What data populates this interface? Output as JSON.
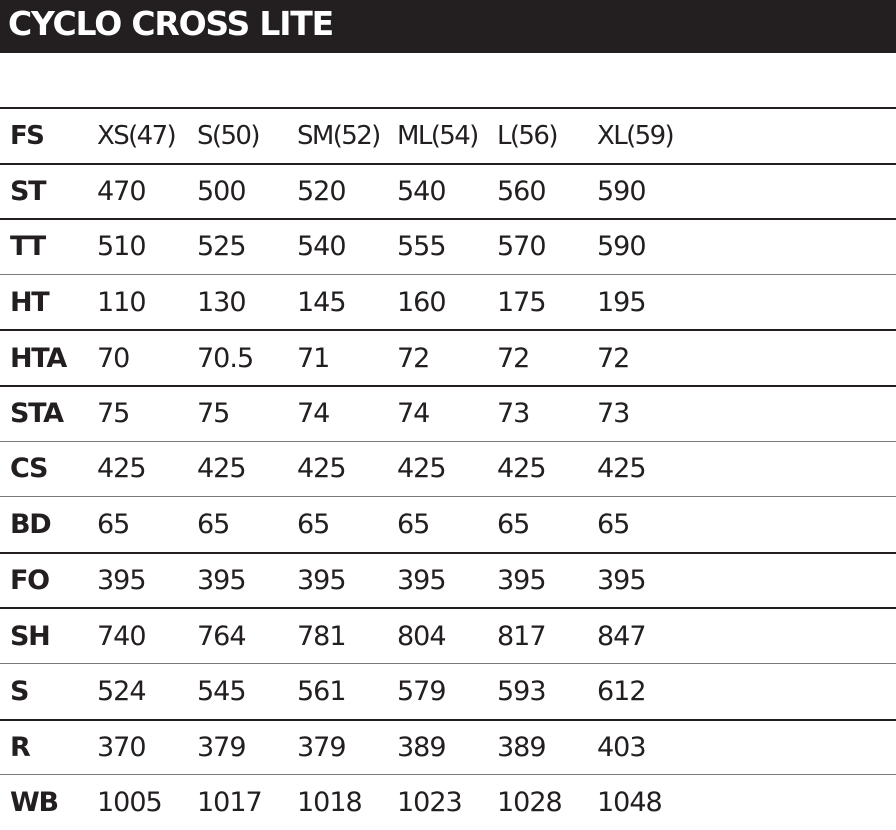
{
  "title": "CYCLO CROSS LITE",
  "header": {
    "label": "FS",
    "sizes": [
      "XS(47)",
      "S(50)",
      "SM(52)",
      "ML(54)",
      "L(56)",
      "XL(59)"
    ]
  },
  "rows": [
    {
      "label": "ST",
      "values": [
        "470",
        "500",
        "520",
        "540",
        "560",
        "590"
      ]
    },
    {
      "label": "TT",
      "values": [
        "510",
        "525",
        "540",
        "555",
        "570",
        "590"
      ]
    },
    {
      "label": "HT",
      "values": [
        "110",
        "130",
        "145",
        "160",
        "175",
        "195"
      ]
    },
    {
      "label": "HTA",
      "values": [
        "70",
        "70.5",
        "71",
        "72",
        "72",
        "72"
      ]
    },
    {
      "label": "STA",
      "values": [
        "75",
        "75",
        "74",
        "74",
        "73",
        "73"
      ]
    },
    {
      "label": "CS",
      "values": [
        "425",
        "425",
        "425",
        "425",
        "425",
        "425"
      ]
    },
    {
      "label": "BD",
      "values": [
        "65",
        "65",
        "65",
        "65",
        "65",
        "65"
      ]
    },
    {
      "label": "FO",
      "values": [
        "395",
        "395",
        "395",
        "395",
        "395",
        "395"
      ]
    },
    {
      "label": "SH",
      "values": [
        "740",
        "764",
        "781",
        "804",
        "817",
        "847"
      ]
    },
    {
      "label": "S",
      "values": [
        "524",
        "545",
        "561",
        "579",
        "593",
        "612"
      ]
    },
    {
      "label": "R",
      "values": [
        "370",
        "379",
        "379",
        "389",
        "389",
        "403"
      ]
    },
    {
      "label": "WB",
      "values": [
        "1005",
        "1017",
        "1018",
        "1023",
        "1028",
        "1048"
      ]
    }
  ]
}
